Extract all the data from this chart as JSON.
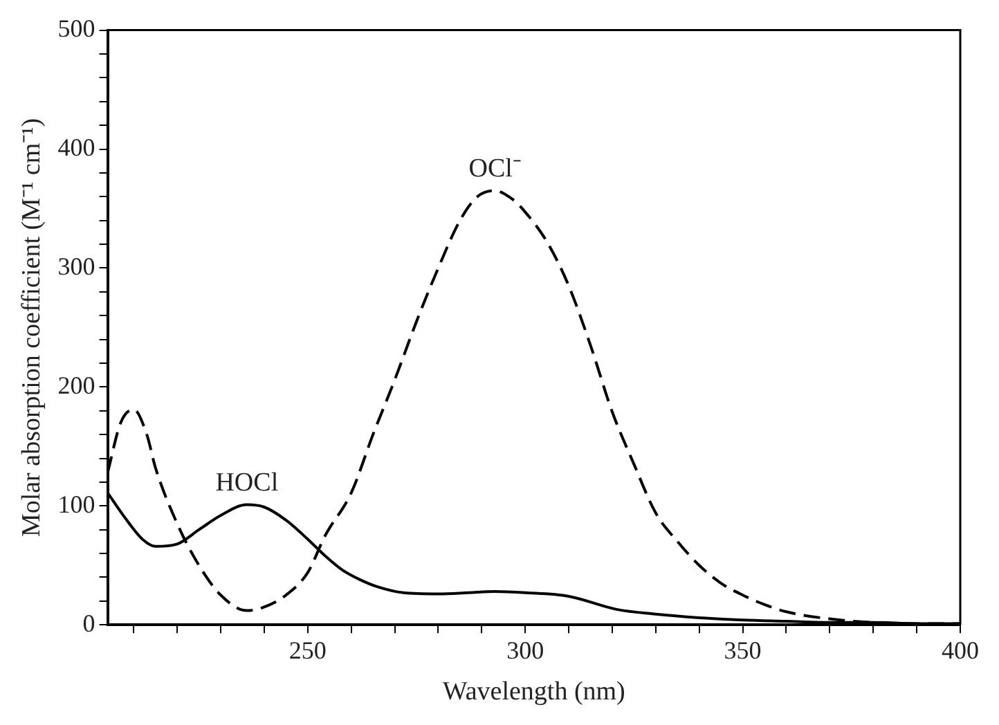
{
  "chart_data": {
    "type": "line",
    "xlabel": "Wavelength (nm)",
    "ylabel": "Molar absorption coefficient (M⁻¹ cm⁻¹)",
    "xlim": [
      204,
      400
    ],
    "ylim": [
      0,
      500
    ],
    "xticks": [
      {
        "value": 210,
        "label": null
      },
      {
        "value": 220,
        "label": null
      },
      {
        "value": 230,
        "label": null
      },
      {
        "value": 240,
        "label": null
      },
      250,
      {
        "value": 260,
        "label": null
      },
      {
        "value": 270,
        "label": null
      },
      {
        "value": 280,
        "label": null
      },
      {
        "value": 290,
        "label": null
      },
      300,
      {
        "value": 310,
        "label": null
      },
      {
        "value": 320,
        "label": null
      },
      {
        "value": 330,
        "label": null
      },
      {
        "value": 340,
        "label": null
      },
      350,
      {
        "value": 360,
        "label": null
      },
      {
        "value": 370,
        "label": null
      },
      {
        "value": 380,
        "label": null
      },
      {
        "value": 390,
        "label": null
      },
      400
    ],
    "yticks": [
      0,
      {
        "value": 20,
        "label": null
      },
      {
        "value": 40,
        "label": null
      },
      {
        "value": 60,
        "label": null
      },
      {
        "value": 80,
        "label": null
      },
      100,
      {
        "value": 120,
        "label": null
      },
      {
        "value": 140,
        "label": null
      },
      {
        "value": 160,
        "label": null
      },
      {
        "value": 180,
        "label": null
      },
      200,
      {
        "value": 220,
        "label": null
      },
      {
        "value": 240,
        "label": null
      },
      {
        "value": 260,
        "label": null
      },
      {
        "value": 280,
        "label": null
      },
      300,
      {
        "value": 320,
        "label": null
      },
      {
        "value": 340,
        "label": null
      },
      {
        "value": 360,
        "label": null
      },
      {
        "value": 380,
        "label": null
      },
      400,
      {
        "value": 420,
        "label": null
      },
      {
        "value": 440,
        "label": null
      },
      {
        "value": 460,
        "label": null
      },
      {
        "value": 480,
        "label": null
      },
      500
    ],
    "grid": false,
    "legend": false,
    "marker": "none",
    "series": [
      {
        "color": "#000000",
        "line_style": "solid",
        "x": [
          204,
          208,
          212,
          215,
          220,
          225,
          230,
          236,
          240,
          245,
          250,
          254,
          258,
          262,
          266,
          272,
          280,
          287,
          293,
          300,
          310,
          321,
          330,
          340,
          350,
          360,
          370,
          380,
          390,
          400
        ],
        "values": [
          111,
          90,
          72,
          66,
          68,
          80,
          92,
          101,
          99,
          88,
          72,
          58,
          46,
          38,
          32,
          27,
          26,
          27,
          28,
          27,
          24,
          13,
          9,
          6,
          4,
          3,
          2,
          2,
          1,
          1
        ]
      },
      {
        "color": "#000000",
        "line_style": "dashed",
        "x": [
          204,
          207,
          210,
          213,
          215,
          220,
          225,
          230,
          236,
          240,
          245,
          250,
          254,
          260,
          265,
          270,
          275,
          280,
          285,
          289,
          293,
          297,
          300,
          305,
          310,
          315,
          320,
          325,
          330,
          335,
          340,
          345,
          350,
          355,
          360,
          370,
          380,
          390,
          400
        ],
        "values": [
          128,
          170,
          181,
          160,
          132,
          85,
          50,
          25,
          12,
          15,
          25,
          44,
          75,
          111,
          160,
          206,
          255,
          300,
          340,
          360,
          365,
          358,
          347,
          322,
          285,
          235,
          179,
          135,
          94,
          70,
          50,
          35,
          25,
          17,
          11,
          5,
          2,
          1,
          1
        ]
      }
    ],
    "annotations": [
      {
        "text": "HOCl",
        "x": 236,
        "y": 101
      },
      {
        "text": "OCl⁻",
        "x": 293,
        "y": 365
      }
    ]
  }
}
